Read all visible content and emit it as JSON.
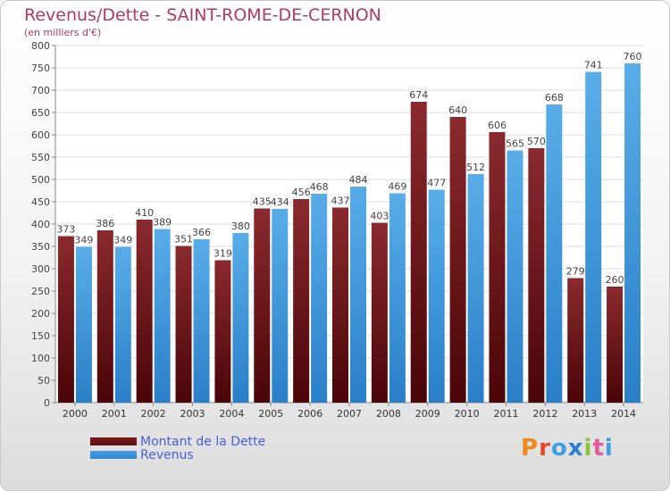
{
  "title": "Revenus/Dette - SAINT-ROME-DE-CERNON",
  "subtitle": "(en milliers d'€)",
  "legend": {
    "dette": "Montant de la Dette",
    "revenus": "Revenus"
  },
  "logo": "Proxiti",
  "colors": {
    "dette": "#7a1a1e",
    "revenus": "#4a9fe0",
    "title": "#b03a62",
    "legend": "#4a5fd8"
  },
  "chart_data": {
    "type": "bar",
    "title": "Revenus/Dette - SAINT-ROME-DE-CERNON",
    "ylabel": "(en milliers d'€)",
    "categories": [
      "2000",
      "2001",
      "2002",
      "2003",
      "2004",
      "2005",
      "2006",
      "2007",
      "2008",
      "2009",
      "2010",
      "2011",
      "2012",
      "2013",
      "2014"
    ],
    "series": [
      {
        "name": "Montant de la Dette",
        "values": [
          373,
          386,
          410,
          351,
          319,
          435,
          456,
          437,
          403,
          674,
          640,
          606,
          570,
          279,
          260
        ]
      },
      {
        "name": "Revenus",
        "values": [
          349,
          349,
          389,
          366,
          380,
          434,
          468,
          484,
          469,
          477,
          512,
          565,
          668,
          741,
          760
        ]
      }
    ],
    "ylim": [
      0,
      800
    ],
    "yticks": [
      0,
      50,
      100,
      150,
      200,
      250,
      300,
      350,
      400,
      450,
      500,
      550,
      600,
      650,
      700,
      750,
      800
    ],
    "grid": true,
    "legend_position": "bottom-left"
  }
}
